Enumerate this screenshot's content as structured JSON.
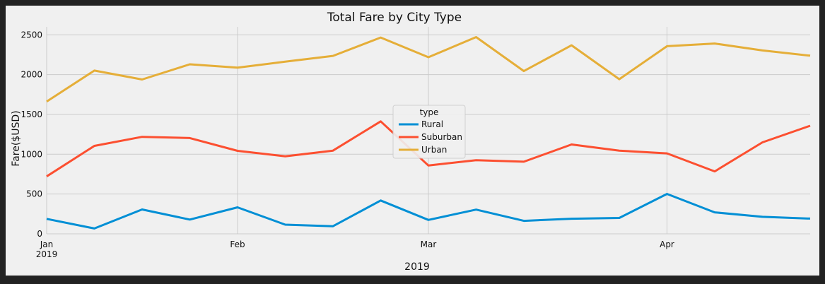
{
  "chart_data": {
    "type": "line",
    "title": "Total Fare by City Type",
    "xlabel": "2019",
    "ylabel": "Fare($USD)",
    "ylim": [
      0,
      2600
    ],
    "xlim": [
      0,
      16
    ],
    "x": [
      "2019-01-06",
      "2019-01-13",
      "2019-01-20",
      "2019-01-27",
      "2019-02-03",
      "2019-02-10",
      "2019-02-17",
      "2019-02-24",
      "2019-03-03",
      "2019-03-10",
      "2019-03-17",
      "2019-03-24",
      "2019-03-31",
      "2019-04-07",
      "2019-04-14",
      "2019-04-21",
      "2019-04-28"
    ],
    "x_ticks": [
      {
        "pos": 0,
        "label": "Jan",
        "sublabel": "2019"
      },
      {
        "pos": 4,
        "label": "Feb",
        "sublabel": ""
      },
      {
        "pos": 8,
        "label": "Mar",
        "sublabel": ""
      },
      {
        "pos": 13,
        "label": "Apr",
        "sublabel": ""
      }
    ],
    "y_ticks": [
      0,
      500,
      1000,
      1500,
      2000,
      2500
    ],
    "grid": true,
    "legend": {
      "title": "type",
      "placement": "center"
    },
    "series": [
      {
        "name": "Rural",
        "color": "#008fd5",
        "values": [
          187.92,
          67.65,
          306.0,
          179.69,
          333.08,
          115.8,
          95.82,
          419.06,
          175.14,
          303.94,
          163.39,
          189.76,
          199.42,
          501.24,
          269.79,
          214.14,
          191.85
        ]
      },
      {
        "name": "Suburban",
        "color": "#fc4f30",
        "values": [
          721.6,
          1105.13,
          1218.2,
          1203.28,
          1042.79,
          974.34,
          1045.5,
          1412.74,
          858.46,
          925.27,
          905.87,
          1122.2,
          1045.06,
          1010.73,
          784.82,
          1149.27,
          1357.75
        ]
      },
      {
        "name": "Urban",
        "color": "#e5ae38",
        "values": [
          1661.68,
          2050.43,
          1939.02,
          2129.51,
          2086.94,
          2162.64,
          2235.07,
          2466.29,
          2218.2,
          2470.93,
          2044.42,
          2368.37,
          1942.77,
          2356.7,
          2390.72,
          2303.8,
          2238.29
        ]
      }
    ]
  }
}
